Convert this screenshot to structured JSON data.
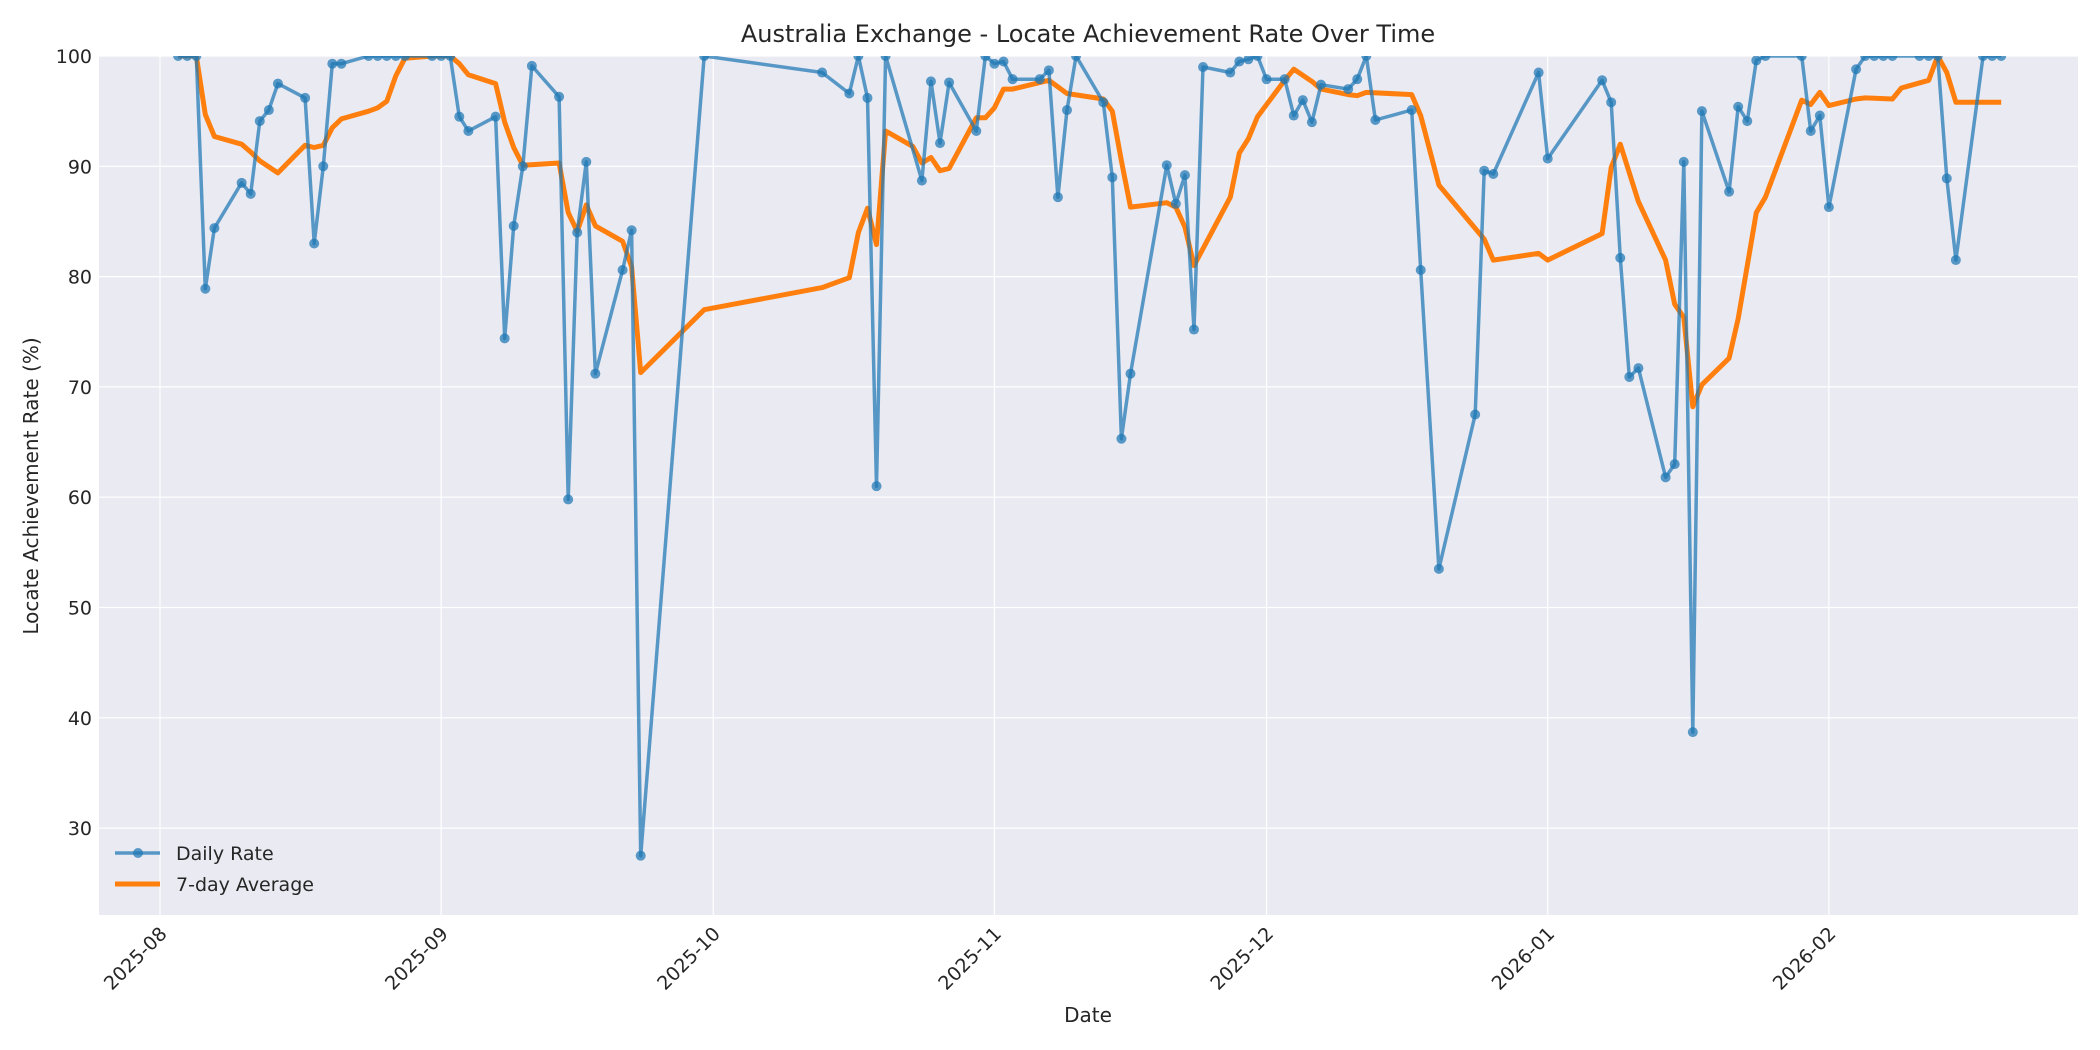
{
  "chart_data": {
    "type": "line",
    "title": "Australia Exchange - Locate Achievement Rate Over Time",
    "xlabel": "Date",
    "ylabel": "Locate Achievement Rate (%)",
    "ylim": [
      22.3,
      100
    ],
    "yticks": [
      30,
      40,
      50,
      60,
      70,
      80,
      90,
      100
    ],
    "xticks": [
      "2025-08",
      "2025-09",
      "2025-10",
      "2025-11",
      "2025-12",
      "2026-01",
      "2026-02"
    ],
    "grid": true,
    "legend": {
      "position": "lower left",
      "entries": [
        "Daily Rate",
        "7-day Average"
      ]
    },
    "colors": {
      "daily": "#1f77b4",
      "avg": "#ff7f0e",
      "plot_bg": "#eaeaf2",
      "grid": "#ffffff"
    },
    "series": [
      {
        "name": "Daily Rate",
        "points": [
          [
            "2025-08-03",
            100
          ],
          [
            "2025-08-04",
            100
          ],
          [
            "2025-08-05",
            100
          ],
          [
            "2025-08-06",
            78.9
          ],
          [
            "2025-08-07",
            84.4
          ],
          [
            "2025-08-10",
            88.5
          ],
          [
            "2025-08-11",
            87.5
          ],
          [
            "2025-08-12",
            94.1
          ],
          [
            "2025-08-13",
            95.1
          ],
          [
            "2025-08-14",
            97.5
          ],
          [
            "2025-08-17",
            96.2
          ],
          [
            "2025-08-18",
            83.0
          ],
          [
            "2025-08-19",
            90.0
          ],
          [
            "2025-08-20",
            99.3
          ],
          [
            "2025-08-21",
            99.3
          ],
          [
            "2025-08-24",
            100
          ],
          [
            "2025-08-25",
            100
          ],
          [
            "2025-08-26",
            100
          ],
          [
            "2025-08-27",
            100
          ],
          [
            "2025-08-28",
            100
          ],
          [
            "2025-08-31",
            100
          ],
          [
            "2025-09-01",
            100
          ],
          [
            "2025-09-02",
            100
          ],
          [
            "2025-09-03",
            94.5
          ],
          [
            "2025-09-04",
            93.2
          ],
          [
            "2025-09-07",
            94.5
          ],
          [
            "2025-09-08",
            74.4
          ],
          [
            "2025-09-09",
            84.6
          ],
          [
            "2025-09-10",
            90.0
          ],
          [
            "2025-09-11",
            99.1
          ],
          [
            "2025-09-14",
            96.3
          ],
          [
            "2025-09-15",
            59.8
          ],
          [
            "2025-09-16",
            84.0
          ],
          [
            "2025-09-17",
            90.4
          ],
          [
            "2025-09-18",
            71.2
          ],
          [
            "2025-09-21",
            80.6
          ],
          [
            "2025-09-22",
            84.2
          ],
          [
            "2025-09-23",
            27.5
          ],
          [
            "2025-09-30",
            100
          ],
          [
            "2025-10-13",
            98.5
          ],
          [
            "2025-10-16",
            96.6
          ],
          [
            "2025-10-17",
            100
          ],
          [
            "2025-10-18",
            96.2
          ],
          [
            "2025-10-19",
            61.0
          ],
          [
            "2025-10-20",
            100
          ],
          [
            "2025-10-24",
            88.7
          ],
          [
            "2025-10-25",
            97.7
          ],
          [
            "2025-10-26",
            92.1
          ],
          [
            "2025-10-27",
            97.6
          ],
          [
            "2025-10-30",
            93.2
          ],
          [
            "2025-10-31",
            100
          ],
          [
            "2025-11-01",
            99.3
          ],
          [
            "2025-11-02",
            99.5
          ],
          [
            "2025-11-03",
            97.9
          ],
          [
            "2025-11-06",
            97.9
          ],
          [
            "2025-11-07",
            98.7
          ],
          [
            "2025-11-08",
            87.2
          ],
          [
            "2025-11-09",
            95.1
          ],
          [
            "2025-11-10",
            100
          ],
          [
            "2025-11-13",
            95.8
          ],
          [
            "2025-11-14",
            89.0
          ],
          [
            "2025-11-15",
            65.3
          ],
          [
            "2025-11-16",
            71.2
          ],
          [
            "2025-11-20",
            90.1
          ],
          [
            "2025-11-21",
            86.6
          ],
          [
            "2025-11-22",
            89.2
          ],
          [
            "2025-11-23",
            75.2
          ],
          [
            "2025-11-24",
            99.0
          ],
          [
            "2025-11-27",
            98.5
          ],
          [
            "2025-11-28",
            99.5
          ],
          [
            "2025-11-29",
            99.7
          ],
          [
            "2025-11-30",
            100
          ],
          [
            "2025-12-01",
            97.9
          ],
          [
            "2025-12-03",
            97.9
          ],
          [
            "2025-12-04",
            94.6
          ],
          [
            "2025-12-05",
            96.0
          ],
          [
            "2025-12-06",
            94.0
          ],
          [
            "2025-12-07",
            97.4
          ],
          [
            "2025-12-10",
            97.0
          ],
          [
            "2025-12-11",
            97.9
          ],
          [
            "2025-12-12",
            100
          ],
          [
            "2025-12-13",
            94.2
          ],
          [
            "2025-12-17",
            95.1
          ],
          [
            "2025-12-18",
            80.6
          ],
          [
            "2025-12-20",
            53.5
          ],
          [
            "2025-12-24",
            67.5
          ],
          [
            "2025-12-25",
            89.6
          ],
          [
            "2025-12-26",
            89.3
          ],
          [
            "2025-12-31",
            98.5
          ],
          [
            "2026-01-01",
            90.7
          ],
          [
            "2026-01-07",
            97.8
          ],
          [
            "2026-01-08",
            95.8
          ],
          [
            "2026-01-09",
            81.7
          ],
          [
            "2026-01-10",
            70.9
          ],
          [
            "2026-01-11",
            71.7
          ],
          [
            "2026-01-14",
            61.8
          ],
          [
            "2026-01-15",
            63.0
          ],
          [
            "2026-01-16",
            90.4
          ],
          [
            "2026-01-17",
            38.7
          ],
          [
            "2026-01-18",
            95.0
          ],
          [
            "2026-01-21",
            87.7
          ],
          [
            "2026-01-22",
            95.4
          ],
          [
            "2026-01-23",
            94.1
          ],
          [
            "2026-01-24",
            99.6
          ],
          [
            "2026-01-25",
            100
          ],
          [
            "2026-01-29",
            100
          ],
          [
            "2026-01-30",
            93.2
          ],
          [
            "2026-01-31",
            94.6
          ],
          [
            "2026-02-01",
            86.3
          ],
          [
            "2026-02-04",
            98.8
          ],
          [
            "2026-02-05",
            100
          ],
          [
            "2026-02-06",
            100
          ],
          [
            "2026-02-07",
            100
          ],
          [
            "2026-02-08",
            100
          ],
          [
            "2026-02-11",
            100
          ],
          [
            "2026-02-12",
            100
          ],
          [
            "2026-02-13",
            100
          ],
          [
            "2026-02-14",
            88.9
          ],
          [
            "2026-02-15",
            81.5
          ],
          [
            "2026-02-18",
            100
          ],
          [
            "2026-02-19",
            100
          ],
          [
            "2026-02-20",
            100
          ]
        ]
      },
      {
        "name": "7-day Average",
        "points": [
          [
            "2025-08-03",
            100
          ],
          [
            "2025-08-05",
            100
          ],
          [
            "2025-08-06",
            94.7
          ],
          [
            "2025-08-07",
            92.7
          ],
          [
            "2025-08-10",
            92.0
          ],
          [
            "2025-08-11",
            91.3
          ],
          [
            "2025-08-12",
            90.5
          ],
          [
            "2025-08-14",
            89.4
          ],
          [
            "2025-08-17",
            91.9
          ],
          [
            "2025-08-18",
            91.7
          ],
          [
            "2025-08-19",
            91.9
          ],
          [
            "2025-08-20",
            93.5
          ],
          [
            "2025-08-21",
            94.3
          ],
          [
            "2025-08-24",
            95.0
          ],
          [
            "2025-08-25",
            95.3
          ],
          [
            "2025-08-26",
            95.9
          ],
          [
            "2025-08-27",
            98.2
          ],
          [
            "2025-08-28",
            99.8
          ],
          [
            "2025-08-31",
            100
          ],
          [
            "2025-09-02",
            100
          ],
          [
            "2025-09-03",
            99.3
          ],
          [
            "2025-09-04",
            98.3
          ],
          [
            "2025-09-07",
            97.5
          ],
          [
            "2025-09-08",
            94.0
          ],
          [
            "2025-09-09",
            91.7
          ],
          [
            "2025-09-10",
            90.1
          ],
          [
            "2025-09-14",
            90.3
          ],
          [
            "2025-09-15",
            85.8
          ],
          [
            "2025-09-16",
            84.1
          ],
          [
            "2025-09-17",
            86.5
          ],
          [
            "2025-09-18",
            84.6
          ],
          [
            "2025-09-21",
            83.2
          ],
          [
            "2025-09-22",
            80.9
          ],
          [
            "2025-09-23",
            71.3
          ],
          [
            "2025-09-30",
            77.0
          ],
          [
            "2025-10-13",
            79.0
          ],
          [
            "2025-10-16",
            79.9
          ],
          [
            "2025-10-17",
            84.0
          ],
          [
            "2025-10-18",
            86.2
          ],
          [
            "2025-10-19",
            82.9
          ],
          [
            "2025-10-20",
            93.2
          ],
          [
            "2025-10-23",
            91.8
          ],
          [
            "2025-10-24",
            90.3
          ],
          [
            "2025-10-25",
            90.8
          ],
          [
            "2025-10-26",
            89.6
          ],
          [
            "2025-10-27",
            89.8
          ],
          [
            "2025-10-30",
            94.4
          ],
          [
            "2025-10-31",
            94.4
          ],
          [
            "2025-11-01",
            95.3
          ],
          [
            "2025-11-02",
            97.0
          ],
          [
            "2025-11-03",
            97.0
          ],
          [
            "2025-11-07",
            97.8
          ],
          [
            "2025-11-09",
            96.6
          ],
          [
            "2025-11-13",
            96.1
          ],
          [
            "2025-11-14",
            95.0
          ],
          [
            "2025-11-15",
            90.5
          ],
          [
            "2025-11-16",
            86.3
          ],
          [
            "2025-11-20",
            86.7
          ],
          [
            "2025-11-21",
            86.3
          ],
          [
            "2025-11-22",
            84.5
          ],
          [
            "2025-11-23",
            81.0
          ],
          [
            "2025-11-27",
            87.2
          ],
          [
            "2025-11-28",
            91.2
          ],
          [
            "2025-11-29",
            92.5
          ],
          [
            "2025-11-30",
            94.5
          ],
          [
            "2025-12-03",
            97.8
          ],
          [
            "2025-12-04",
            98.8
          ],
          [
            "2025-12-06",
            97.7
          ],
          [
            "2025-12-07",
            97.0
          ],
          [
            "2025-12-10",
            96.5
          ],
          [
            "2025-12-11",
            96.4
          ],
          [
            "2025-12-12",
            96.7
          ],
          [
            "2025-12-17",
            96.5
          ],
          [
            "2025-12-18",
            94.6
          ],
          [
            "2025-12-20",
            88.3
          ],
          [
            "2025-12-25",
            83.4
          ],
          [
            "2025-12-26",
            81.5
          ],
          [
            "2025-12-31",
            82.1
          ],
          [
            "2026-01-01",
            81.5
          ],
          [
            "2026-01-07",
            83.9
          ],
          [
            "2026-01-08",
            89.9
          ],
          [
            "2026-01-09",
            92.0
          ],
          [
            "2026-01-11",
            86.8
          ],
          [
            "2026-01-14",
            81.5
          ],
          [
            "2026-01-15",
            77.5
          ],
          [
            "2026-01-16",
            76.3
          ],
          [
            "2026-01-17",
            68.2
          ],
          [
            "2026-01-18",
            70.2
          ],
          [
            "2026-01-21",
            72.6
          ],
          [
            "2026-01-22",
            76.2
          ],
          [
            "2026-01-23",
            81.0
          ],
          [
            "2026-01-24",
            85.8
          ],
          [
            "2026-01-25",
            87.2
          ],
          [
            "2026-01-29",
            96.0
          ],
          [
            "2026-01-30",
            95.6
          ],
          [
            "2026-01-31",
            96.7
          ],
          [
            "2026-02-01",
            95.5
          ],
          [
            "2026-02-04",
            96.1
          ],
          [
            "2026-02-05",
            96.2
          ],
          [
            "2026-02-08",
            96.1
          ],
          [
            "2026-02-09",
            97.1
          ],
          [
            "2026-02-12",
            97.8
          ],
          [
            "2026-02-13",
            100
          ],
          [
            "2026-02-14",
            98.5
          ],
          [
            "2026-02-15",
            95.8
          ],
          [
            "2026-02-20",
            95.8
          ]
        ]
      }
    ]
  }
}
